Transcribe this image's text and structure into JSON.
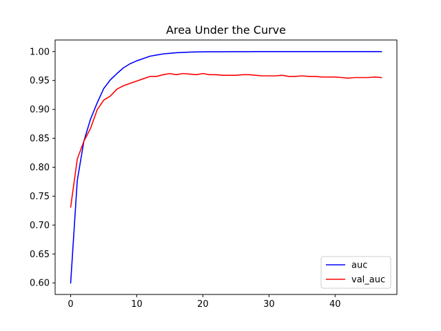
{
  "chart_data": {
    "type": "line",
    "title": "Area Under the Curve",
    "xlabel": "",
    "ylabel": "",
    "xlim": [
      -2.35,
      49.35
    ],
    "ylim": [
      0.58,
      1.02
    ],
    "xticks": [
      0,
      10,
      20,
      30,
      40
    ],
    "yticks": [
      0.6,
      0.65,
      0.7,
      0.75,
      0.8,
      0.85,
      0.9,
      0.95,
      1.0
    ],
    "grid": false,
    "legend_position": "lower-right",
    "x": [
      0,
      1,
      2,
      3,
      4,
      5,
      6,
      7,
      8,
      9,
      10,
      11,
      12,
      13,
      14,
      15,
      16,
      17,
      18,
      19,
      20,
      21,
      22,
      23,
      24,
      25,
      26,
      27,
      28,
      29,
      30,
      31,
      32,
      33,
      34,
      35,
      36,
      37,
      38,
      39,
      40,
      41,
      42,
      43,
      44,
      45,
      46,
      47
    ],
    "series": [
      {
        "name": "auc",
        "color": "#0000ff",
        "values": [
          0.6,
          0.777,
          0.845,
          0.883,
          0.911,
          0.936,
          0.951,
          0.962,
          0.972,
          0.979,
          0.984,
          0.988,
          0.992,
          0.994,
          0.996,
          0.997,
          0.998,
          0.9985,
          0.999,
          0.9993,
          0.9995,
          0.9996,
          0.9997,
          0.9997,
          0.9998,
          0.9998,
          0.9998,
          0.9998,
          0.9999,
          0.9999,
          0.9999,
          0.9999,
          0.9999,
          0.9999,
          0.9999,
          0.9999,
          0.9999,
          0.9999,
          0.9999,
          0.9999,
          0.9999,
          0.9999,
          0.9999,
          0.9999,
          0.9999,
          0.9999,
          0.9999,
          0.9999
        ]
      },
      {
        "name": "val_auc",
        "color": "#ff0000",
        "values": [
          0.731,
          0.814,
          0.845,
          0.867,
          0.899,
          0.916,
          0.923,
          0.935,
          0.941,
          0.945,
          0.949,
          0.953,
          0.957,
          0.957,
          0.96,
          0.962,
          0.96,
          0.962,
          0.961,
          0.96,
          0.962,
          0.96,
          0.96,
          0.959,
          0.959,
          0.959,
          0.96,
          0.96,
          0.959,
          0.958,
          0.958,
          0.958,
          0.959,
          0.957,
          0.957,
          0.958,
          0.957,
          0.957,
          0.956,
          0.956,
          0.956,
          0.955,
          0.954,
          0.955,
          0.955,
          0.955,
          0.956,
          0.955
        ]
      }
    ]
  }
}
